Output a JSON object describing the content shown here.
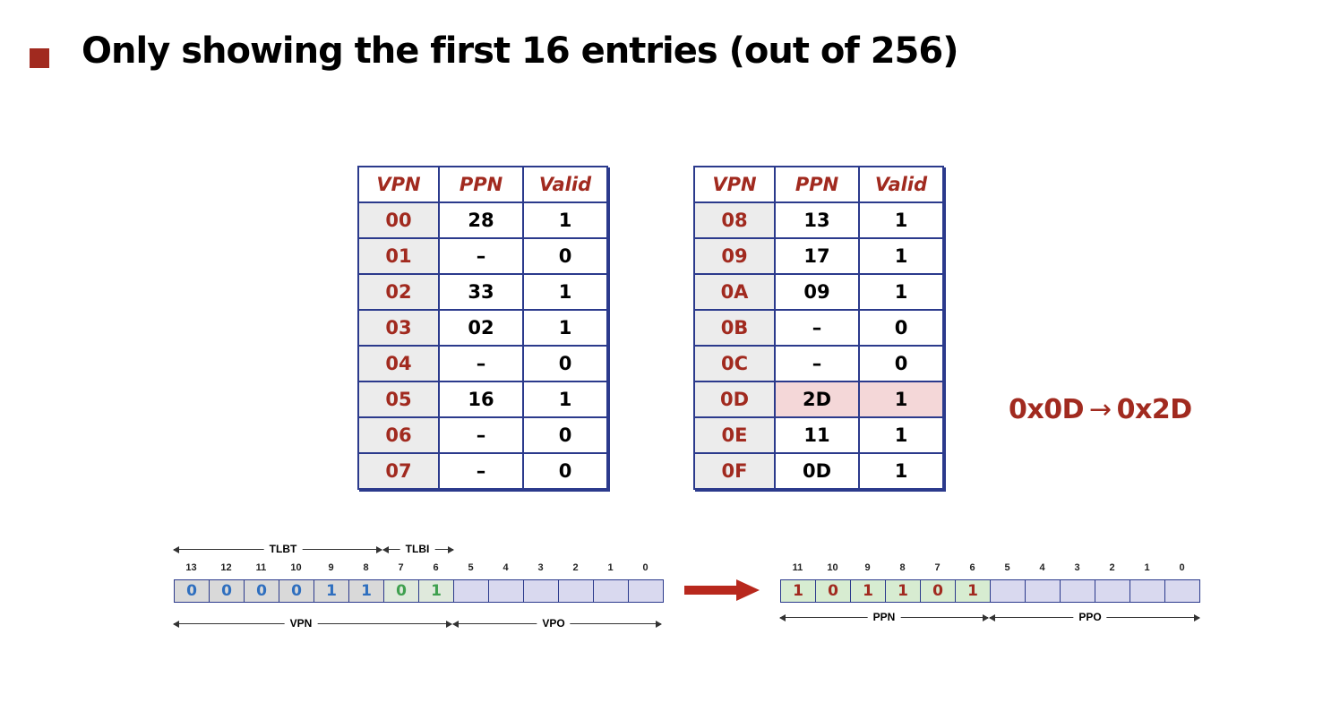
{
  "title": "Only showing the first 16 entries (out of 256)",
  "tables": [
    {
      "headers": [
        "VPN",
        "PPN",
        "Valid"
      ],
      "rows": [
        [
          "00",
          "28",
          "1"
        ],
        [
          "01",
          "–",
          "0"
        ],
        [
          "02",
          "33",
          "1"
        ],
        [
          "03",
          "02",
          "1"
        ],
        [
          "04",
          "–",
          "0"
        ],
        [
          "05",
          "16",
          "1"
        ],
        [
          "06",
          "–",
          "0"
        ],
        [
          "07",
          "–",
          "0"
        ]
      ]
    },
    {
      "headers": [
        "VPN",
        "PPN",
        "Valid"
      ],
      "rows": [
        [
          "08",
          "13",
          "1"
        ],
        [
          "09",
          "17",
          "1"
        ],
        [
          "0A",
          "09",
          "1"
        ],
        [
          "0B",
          "–",
          "0"
        ],
        [
          "0C",
          "–",
          "0"
        ],
        [
          "0D",
          "2D",
          "1"
        ],
        [
          "0E",
          "11",
          "1"
        ],
        [
          "0F",
          "0D",
          "1"
        ]
      ],
      "highlight_row": 5
    }
  ],
  "translation": {
    "from": "0x0D",
    "arrow": "→",
    "to": "0x2D"
  },
  "virtual_address": {
    "bit_numbers": [
      "13",
      "12",
      "11",
      "10",
      "9",
      "8",
      "7",
      "6",
      "5",
      "4",
      "3",
      "2",
      "1",
      "0"
    ],
    "bits": [
      "0",
      "0",
      "0",
      "0",
      "1",
      "1",
      "0",
      "1",
      "",
      "",
      "",
      "",
      "",
      ""
    ],
    "bit_styles": [
      "blue",
      "blue",
      "blue",
      "blue",
      "blue",
      "blue",
      "green",
      "green",
      "plain",
      "plain",
      "plain",
      "plain",
      "plain",
      "plain"
    ],
    "labels": {
      "tlbt": "TLBT",
      "tlbi": "TLBI",
      "vpn": "VPN",
      "vpo": "VPO"
    }
  },
  "physical_address": {
    "bit_numbers": [
      "11",
      "10",
      "9",
      "8",
      "7",
      "6",
      "5",
      "4",
      "3",
      "2",
      "1",
      "0"
    ],
    "bits": [
      "1",
      "0",
      "1",
      "1",
      "0",
      "1",
      "",
      "",
      "",
      "",
      "",
      ""
    ],
    "bit_styles": [
      "red",
      "red",
      "red",
      "red",
      "red",
      "red",
      "plain",
      "plain",
      "plain",
      "plain",
      "plain",
      "plain"
    ],
    "labels": {
      "ppn": "PPN",
      "ppo": "PPO"
    }
  },
  "colors": {
    "accent": "#a12a1f",
    "border": "#2b3a8c",
    "highlight": "#f4d7d8"
  }
}
